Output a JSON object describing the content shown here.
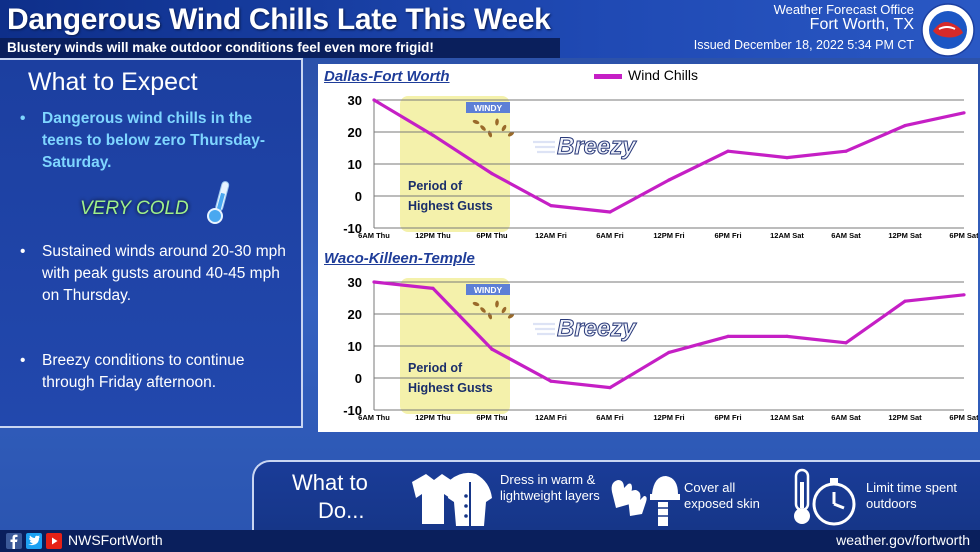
{
  "header": {
    "title": "Dangerous Wind Chills Late This Week",
    "subtitle": "Blustery winds will make outdoor conditions feel even more frigid!",
    "office_line1": "Weather Forecast Office",
    "office_line2": "Fort Worth, TX",
    "issued": "Issued December 18, 2022 5:34 PM CT",
    "logo_icon": "nws-logo-icon"
  },
  "left_panel": {
    "title": "What to Expect",
    "bullets": [
      "Dangerous wind chills in the teens to below zero Thursday-Saturday.",
      "Sustained winds around 20-30 mph with peak gusts around 40-45 mph on Thursday.",
      "Breezy conditions to continue through Friday afternoon."
    ],
    "very_cold": "VERY COLD",
    "bullet_glyph": "•"
  },
  "legend": {
    "label": "Wind Chills",
    "color": "#c51fc5"
  },
  "chart_data": [
    {
      "type": "line",
      "title": "Dallas-Fort Worth",
      "categories": [
        "6AM Thu",
        "12PM Thu",
        "6PM Thu",
        "12AM Fri",
        "6AM Fri",
        "12PM Fri",
        "6PM Fri",
        "12AM Sat",
        "6AM Sat",
        "12PM Sat",
        "6PM Sat"
      ],
      "series": [
        {
          "name": "Wind Chills",
          "values": [
            30,
            19,
            7,
            -3,
            -5,
            5,
            14,
            12,
            14,
            22,
            26
          ]
        }
      ],
      "ylim": [
        -10,
        30
      ],
      "yticks": [
        -10,
        0,
        10,
        20,
        30
      ],
      "grid": true,
      "shaded_period": {
        "label_line1": "Period of",
        "label_line2": "Highest Gusts",
        "from": "6AM Thu",
        "to": "6PM Thu",
        "color": "#f2ee9c",
        "windy_label": "WINDY"
      },
      "annotation": "Breezy"
    },
    {
      "type": "line",
      "title": "Waco-Killeen-Temple",
      "categories": [
        "6AM Thu",
        "12PM Thu",
        "6PM Thu",
        "12AM Fri",
        "6AM Fri",
        "12PM Fri",
        "6PM Fri",
        "12AM Sat",
        "6AM Sat",
        "12PM Sat",
        "6PM Sat"
      ],
      "series": [
        {
          "name": "Wind Chills",
          "values": [
            30,
            28,
            9,
            -1,
            -3,
            8,
            13,
            13,
            11,
            24,
            26
          ]
        }
      ],
      "ylim": [
        -10,
        30
      ],
      "yticks": [
        -10,
        0,
        10,
        20,
        30
      ],
      "grid": true,
      "shaded_period": {
        "label_line1": "Period of",
        "label_line2": "Highest Gusts",
        "from": "6AM Thu",
        "to": "6PM Thu",
        "color": "#f2ee9c",
        "windy_label": "WINDY"
      },
      "annotation": "Breezy"
    }
  ],
  "bottom": {
    "heading_line1": "What to",
    "heading_line2": "Do...",
    "tips": [
      {
        "text": "Dress in warm & lightweight layers",
        "icon": "jacket-icon"
      },
      {
        "text": "Cover all exposed skin",
        "icon": "mittens-hat-icon"
      },
      {
        "text": "Limit time spent outdoors",
        "icon": "thermometer-stopwatch-icon"
      }
    ]
  },
  "footer": {
    "handle": "NWSFortWorth",
    "website": "weather.gov/fortworth",
    "social_icons": [
      "facebook-icon",
      "twitter-icon",
      "youtube-icon"
    ]
  }
}
